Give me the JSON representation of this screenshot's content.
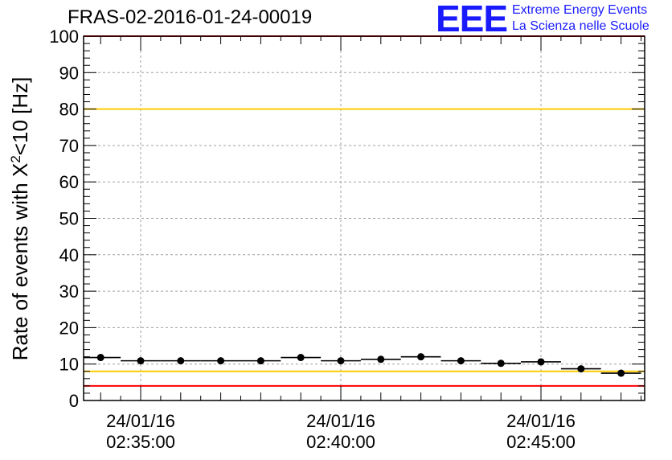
{
  "title": "FRAS-02-2016-01-24-00019",
  "logo": {
    "mark": "EEE",
    "line1": "Extreme Energy Events",
    "line2": "La Scienza nelle Scuole"
  },
  "colors": {
    "points": "#000000",
    "red_line": "#ff0000",
    "yellow_line": "#ffcc00",
    "grid": "#a0a0a0",
    "logo": "#1a1aff"
  },
  "chart_data": {
    "type": "scatter",
    "title": "FRAS-02-2016-01-24-00019",
    "ylabel": "Rate of events with X²<10 [Hz]",
    "ylabel_parts": {
      "prefix": "Rate of events with X",
      "sup": "2",
      "suffix": "<10 [Hz]"
    },
    "xlabel": "",
    "ylim": [
      0,
      100
    ],
    "yticks": [
      0,
      10,
      20,
      30,
      40,
      50,
      60,
      70,
      80,
      90,
      100
    ],
    "xlim_minutes": [
      -1.5,
      12.6
    ],
    "x_unit": "minutes after 24/01/16 02:35:00",
    "xticks": [
      {
        "minute": 0,
        "date": "24/01/16",
        "time": "02:35:00"
      },
      {
        "minute": 5,
        "date": "24/01/16",
        "time": "02:40:00"
      },
      {
        "minute": 10,
        "date": "24/01/16",
        "time": "02:45:00"
      }
    ],
    "grid": true,
    "bin_width_minutes": 1,
    "series": [
      {
        "x": [
          -1,
          0,
          1,
          2,
          3,
          4,
          5,
          6,
          7,
          8,
          9,
          10,
          11,
          12
        ],
        "values": [
          11.8,
          10.9,
          10.9,
          10.9,
          10.9,
          11.8,
          10.9,
          11.3,
          12.0,
          10.9,
          10.2,
          10.6,
          8.7,
          7.5
        ]
      }
    ],
    "reference_lines": [
      {
        "y": 100,
        "color": "red"
      },
      {
        "y": 4,
        "color": "red"
      },
      {
        "y": 80,
        "color": "yellow"
      },
      {
        "y": 8,
        "color": "yellow"
      }
    ]
  }
}
